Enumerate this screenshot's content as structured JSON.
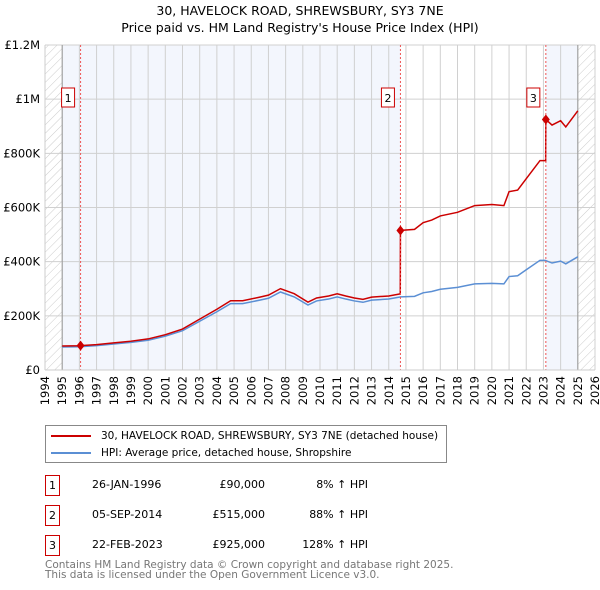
{
  "chart_data": {
    "type": "line",
    "title": "30, HAVELOCK ROAD, SHREWSBURY, SY3 7NE",
    "subtitle": "Price paid vs. HM Land Registry's House Price Index (HPI)",
    "xlim": [
      1994,
      2026
    ],
    "ylim": [
      0,
      1200000
    ],
    "x_ticks": [
      "1994",
      "1995",
      "1996",
      "1997",
      "1998",
      "1999",
      "2000",
      "2001",
      "2002",
      "2003",
      "2004",
      "2005",
      "2006",
      "2007",
      "2008",
      "2009",
      "2010",
      "2011",
      "2012",
      "2013",
      "2014",
      "2015",
      "2016",
      "2017",
      "2018",
      "2019",
      "2020",
      "2021",
      "2022",
      "2023",
      "2024",
      "2025",
      "2026"
    ],
    "y_ticks": [
      {
        "v": 0,
        "label": "£0"
      },
      {
        "v": 200000,
        "label": "£200K"
      },
      {
        "v": 400000,
        "label": "£400K"
      },
      {
        "v": 600000,
        "label": "£600K"
      },
      {
        "v": 800000,
        "label": "£800K"
      },
      {
        "v": 1000000,
        "label": "£1M"
      },
      {
        "v": 1200000,
        "label": "£1.2M"
      }
    ],
    "hpi": {
      "name": "HPI: Average price, detached house, Shropshire",
      "color": "#5b8fd4",
      "x": [
        1995,
        1996,
        1997,
        1998,
        1999,
        2000,
        2001,
        2002,
        2003,
        2004,
        2004.8,
        2005.5,
        2006.5,
        2007,
        2007.7,
        2008.5,
        2009.3,
        2009.8,
        2010.5,
        2011,
        2011.5,
        2012,
        2012.5,
        2013,
        2014,
        2014.7,
        2015.5,
        2016,
        2016.5,
        2017,
        2018,
        2019,
        2020,
        2020.7,
        2021,
        2021.5,
        2022,
        2022.8,
        2023.1,
        2023.5,
        2024,
        2024.3,
        2025
      ],
      "y": [
        85000,
        86000,
        90000,
        96000,
        102000,
        110000,
        125000,
        145000,
        180000,
        215000,
        245000,
        245000,
        258000,
        265000,
        288000,
        270000,
        240000,
        255000,
        262000,
        270000,
        262000,
        255000,
        250000,
        258000,
        262000,
        270000,
        272000,
        285000,
        290000,
        298000,
        305000,
        318000,
        320000,
        318000,
        345000,
        348000,
        370000,
        405000,
        405000,
        395000,
        402000,
        392000,
        418000
      ]
    },
    "property": {
      "name": "30, HAVELOCK ROAD, SHREWSBURY, SY3 7NE (detached house)",
      "color": "#cc0000"
    },
    "sales": [
      {
        "n": "1",
        "x": 1996.07,
        "date": "26-JAN-1996",
        "price": 90000,
        "price_label": "£90,000",
        "hpi": "8% ↑ HPI"
      },
      {
        "n": "2",
        "x": 2014.68,
        "date": "05-SEP-2014",
        "price": 515000,
        "price_label": "£515,000",
        "hpi": "88% ↑ HPI"
      },
      {
        "n": "3",
        "x": 2023.14,
        "date": "22-FEB-2023",
        "price": 925000,
        "price_label": "£925,000",
        "hpi": "128% ↑ HPI"
      }
    ],
    "data_end": 2025,
    "data_start": 1995
  },
  "footer": [
    "Contains HM Land Registry data © Crown copyright and database right 2025.",
    "This data is licensed under the Open Government Licence v3.0."
  ]
}
